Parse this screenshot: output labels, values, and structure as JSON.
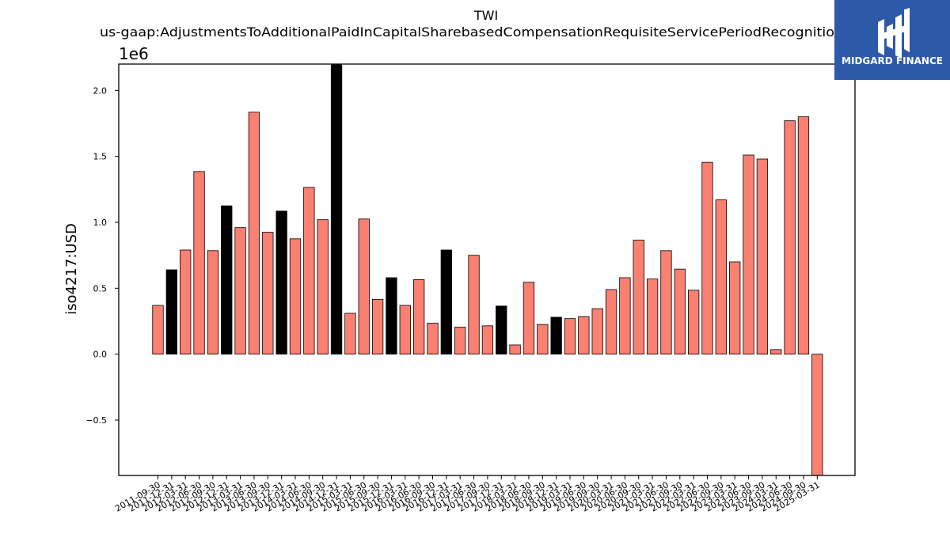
{
  "brand": {
    "name": "MIDGARD FINANCE",
    "bg_color": "#2d5aa8",
    "fg_color": "#ffffff"
  },
  "chart_data": {
    "type": "bar",
    "title": "TWI",
    "subtitle": "us-gaap:AdjustmentsToAdditionalPaidInCapitalSharebasedCompensationRequisiteServicePeriodRecognitio",
    "ylabel": "iso4217:USD",
    "xlabel": "",
    "y_multiplier": "1e6",
    "ylim": [
      -920000,
      2200000
    ],
    "yticks": [
      {
        "value": -500000,
        "label": "−0.5"
      },
      {
        "value": 0,
        "label": "0.0"
      },
      {
        "value": 500000,
        "label": "0.5"
      },
      {
        "value": 1000000,
        "label": "1.0"
      },
      {
        "value": 1500000,
        "label": "1.5"
      },
      {
        "value": 2000000,
        "label": "2.0"
      }
    ],
    "grid": false,
    "colors": {
      "default": "#fa8072",
      "highlight": "#000000",
      "edge": "#000000"
    },
    "bars": [
      {
        "date": "2011-09-30",
        "value": 370000,
        "highlight": false
      },
      {
        "date": "2011-12-31",
        "value": 640000,
        "highlight": true
      },
      {
        "date": "2012-03-31",
        "value": 790000,
        "highlight": false
      },
      {
        "date": "2012-06-30",
        "value": 1385000,
        "highlight": false
      },
      {
        "date": "2012-09-30",
        "value": 785000,
        "highlight": false
      },
      {
        "date": "2012-12-31",
        "value": 1125000,
        "highlight": true
      },
      {
        "date": "2013-03-31",
        "value": 960000,
        "highlight": false
      },
      {
        "date": "2013-06-30",
        "value": 1835000,
        "highlight": false
      },
      {
        "date": "2013-09-30",
        "value": 925000,
        "highlight": false
      },
      {
        "date": "2013-12-31",
        "value": 1085000,
        "highlight": true
      },
      {
        "date": "2014-03-31",
        "value": 875000,
        "highlight": false
      },
      {
        "date": "2014-06-30",
        "value": 1265000,
        "highlight": false
      },
      {
        "date": "2014-09-30",
        "value": 1020000,
        "highlight": false
      },
      {
        "date": "2014-12-31",
        "value": 2200000,
        "highlight": true
      },
      {
        "date": "2015-03-31",
        "value": 310000,
        "highlight": false
      },
      {
        "date": "2015-06-30",
        "value": 1025000,
        "highlight": false
      },
      {
        "date": "2015-09-30",
        "value": 415000,
        "highlight": false
      },
      {
        "date": "2015-12-31",
        "value": 580000,
        "highlight": true
      },
      {
        "date": "2016-03-31",
        "value": 370000,
        "highlight": false
      },
      {
        "date": "2016-06-30",
        "value": 565000,
        "highlight": false
      },
      {
        "date": "2016-09-30",
        "value": 235000,
        "highlight": false
      },
      {
        "date": "2016-12-31",
        "value": 790000,
        "highlight": true
      },
      {
        "date": "2017-03-31",
        "value": 205000,
        "highlight": false
      },
      {
        "date": "2017-06-30",
        "value": 750000,
        "highlight": false
      },
      {
        "date": "2017-09-30",
        "value": 215000,
        "highlight": false
      },
      {
        "date": "2017-12-31",
        "value": 365000,
        "highlight": true
      },
      {
        "date": "2018-03-31",
        "value": 70000,
        "highlight": false
      },
      {
        "date": "2018-06-30",
        "value": 545000,
        "highlight": false
      },
      {
        "date": "2018-09-30",
        "value": 225000,
        "highlight": false
      },
      {
        "date": "2018-12-31",
        "value": 280000,
        "highlight": true
      },
      {
        "date": "2019-03-31",
        "value": 270000,
        "highlight": false
      },
      {
        "date": "2019-06-30",
        "value": 285000,
        "highlight": false
      },
      {
        "date": "2019-09-30",
        "value": 345000,
        "highlight": false
      },
      {
        "date": "2020-03-31",
        "value": 490000,
        "highlight": false
      },
      {
        "date": "2020-06-30",
        "value": 580000,
        "highlight": false
      },
      {
        "date": "2020-09-30",
        "value": 865000,
        "highlight": false
      },
      {
        "date": "2021-03-31",
        "value": 570000,
        "highlight": false
      },
      {
        "date": "2021-06-30",
        "value": 785000,
        "highlight": false
      },
      {
        "date": "2021-09-30",
        "value": 645000,
        "highlight": false
      },
      {
        "date": "2022-03-31",
        "value": 485000,
        "highlight": false
      },
      {
        "date": "2022-06-30",
        "value": 1455000,
        "highlight": false
      },
      {
        "date": "2022-09-30",
        "value": 1170000,
        "highlight": false
      },
      {
        "date": "2023-03-31",
        "value": 700000,
        "highlight": false
      },
      {
        "date": "2023-06-30",
        "value": 1510000,
        "highlight": false
      },
      {
        "date": "2023-09-30",
        "value": 1480000,
        "highlight": false
      },
      {
        "date": "2024-03-31",
        "value": 35000,
        "highlight": false
      },
      {
        "date": "2024-06-30",
        "value": 1770000,
        "highlight": false
      },
      {
        "date": "2024-09-30",
        "value": 1800000,
        "highlight": false
      },
      {
        "date": "2025-03-31",
        "value": -920000,
        "highlight": false
      }
    ]
  }
}
